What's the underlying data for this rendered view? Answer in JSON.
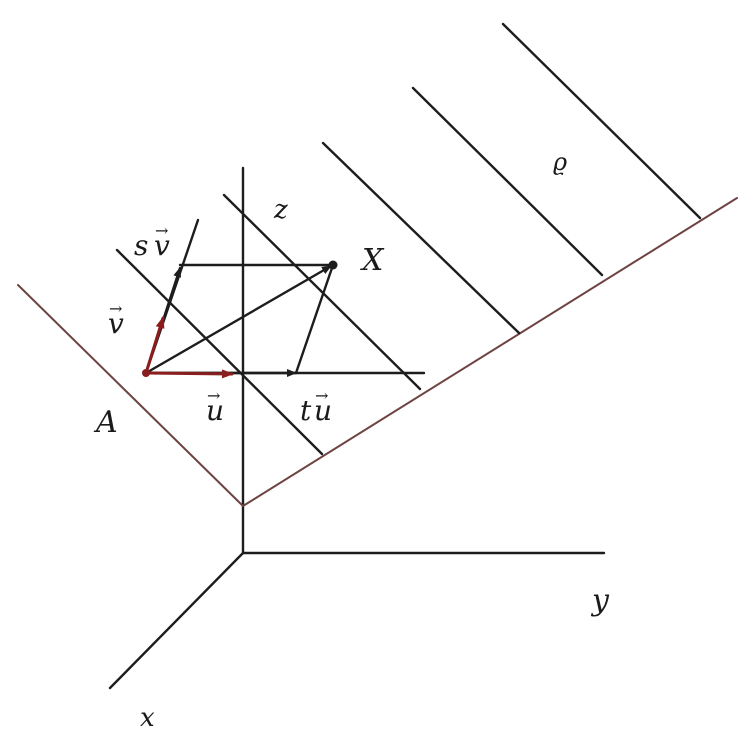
{
  "labels": {
    "plane": "ϱ",
    "point_x": "X",
    "point_a": "A",
    "axis_x": "x",
    "axis_y": "y",
    "axis_z": "z",
    "vec_u": "u",
    "vec_v": "v",
    "vec_tu_coef": "t",
    "vec_sv_coef": "s",
    "arrow": "→"
  },
  "colors": {
    "ink": "#1d1d1d",
    "plane_edge": "#6e4442",
    "basis_vector": "#8a1e1e"
  }
}
